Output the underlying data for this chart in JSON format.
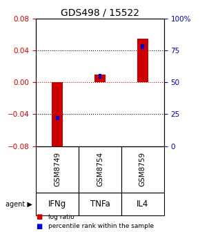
{
  "title": "GDS498 / 15522",
  "samples": [
    "GSM8749",
    "GSM8754",
    "GSM8759"
  ],
  "agents": [
    "IFNg",
    "TNFa",
    "IL4"
  ],
  "log_ratios": [
    -0.092,
    0.01,
    0.055
  ],
  "percentile_ranks": [
    22,
    55,
    78
  ],
  "ylim_left": [
    -0.08,
    0.08
  ],
  "ylim_right": [
    0,
    100
  ],
  "yticks_left": [
    -0.08,
    -0.04,
    0,
    0.04,
    0.08
  ],
  "yticks_right": [
    0,
    25,
    50,
    75,
    100
  ],
  "ytick_labels_right": [
    "0",
    "25",
    "50",
    "75",
    "100%"
  ],
  "bar_color_red": "#cc0000",
  "bar_color_blue": "#0000cc",
  "red_bar_width": 0.25,
  "blue_bar_width": 0.08,
  "bg_color_sample": "#c8c8c8",
  "bg_color_agent_light": "#b8f0b8",
  "bg_color_agent_mid": "#90ee90",
  "bg_color_agent_dark": "#50cc50",
  "zero_line_color": "#cc0000",
  "left_axis_color": "#cc0000",
  "right_axis_color": "#0000aa",
  "title_fontsize": 10,
  "tick_fontsize": 7.5,
  "agent_fontsize": 8.5,
  "sample_fontsize": 7.5,
  "legend_fontsize": 6.5
}
